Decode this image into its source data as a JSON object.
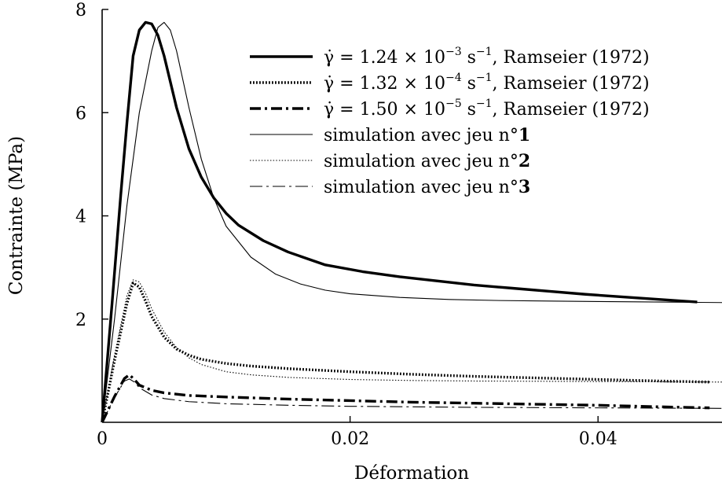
{
  "chart_data": {
    "type": "line",
    "title": "",
    "xlabel": "Déformation",
    "ylabel": "Contrainte (MPa)",
    "xlim": [
      0,
      0.05
    ],
    "ylim": [
      0,
      8
    ],
    "x_ticks": [
      {
        "value": 0,
        "label": "0"
      },
      {
        "value": 0.02,
        "label": "0.02"
      },
      {
        "value": 0.04,
        "label": "0.04"
      }
    ],
    "y_ticks": [
      {
        "value": 2,
        "label": "2"
      },
      {
        "value": 4,
        "label": "4"
      },
      {
        "value": 6,
        "label": "6"
      },
      {
        "value": 8,
        "label": "8"
      }
    ],
    "grid": false,
    "legend_position": "top-right",
    "series": [
      {
        "name": "γ̇ = 1.24 × 10⁻³ s⁻¹, Ramseier (1972)",
        "legend": {
          "lead": "γ̇ = 1.24 × 10",
          "sup1": "−3",
          "mid": " s",
          "sup2": "−1",
          "tail": ", Ramseier (1972)"
        },
        "style": "thick-solid",
        "x": [
          0,
          0.0008,
          0.0015,
          0.002,
          0.0025,
          0.003,
          0.0035,
          0.004,
          0.0045,
          0.005,
          0.006,
          0.007,
          0.008,
          0.009,
          0.01,
          0.011,
          0.013,
          0.015,
          0.018,
          0.021,
          0.024,
          0.027,
          0.03,
          0.033,
          0.036,
          0.039,
          0.042,
          0.045,
          0.048
        ],
        "y": [
          0,
          2.3,
          4.4,
          5.8,
          7.1,
          7.6,
          7.75,
          7.72,
          7.5,
          7.1,
          6.1,
          5.3,
          4.75,
          4.35,
          4.05,
          3.82,
          3.52,
          3.3,
          3.05,
          2.92,
          2.82,
          2.74,
          2.66,
          2.6,
          2.54,
          2.48,
          2.43,
          2.38,
          2.33
        ]
      },
      {
        "name": "γ̇ = 1.32 × 10⁻⁴ s⁻¹, Ramseier (1972)",
        "legend": {
          "lead": "γ̇ = 1.32 × 10",
          "sup1": "−4",
          "mid": " s",
          "sup2": "−1",
          "tail": ", Ramseier (1972)"
        },
        "style": "thick-dotted",
        "x": [
          0,
          0.001,
          0.002,
          0.0025,
          0.003,
          0.0035,
          0.004,
          0.005,
          0.006,
          0.007,
          0.008,
          0.01,
          0.012,
          0.015,
          0.02,
          0.025,
          0.03,
          0.035,
          0.04,
          0.045,
          0.049
        ],
        "y": [
          0,
          1.2,
          2.3,
          2.7,
          2.62,
          2.35,
          2.05,
          1.65,
          1.42,
          1.3,
          1.22,
          1.14,
          1.09,
          1.04,
          0.98,
          0.93,
          0.89,
          0.86,
          0.83,
          0.8,
          0.78
        ]
      },
      {
        "name": "γ̇ = 1.50 × 10⁻⁵ s⁻¹, Ramseier (1972)",
        "legend": {
          "lead": "γ̇ = 1.50 × 10",
          "sup1": "−5",
          "mid": " s",
          "sup2": "−1",
          "tail": ", Ramseier (1972)"
        },
        "style": "thick-dashdot",
        "x": [
          0,
          0.001,
          0.0018,
          0.0022,
          0.0026,
          0.003,
          0.004,
          0.005,
          0.007,
          0.01,
          0.015,
          0.02,
          0.025,
          0.03,
          0.035,
          0.04,
          0.045,
          0.049
        ],
        "y": [
          0,
          0.5,
          0.85,
          0.92,
          0.83,
          0.72,
          0.62,
          0.57,
          0.52,
          0.49,
          0.45,
          0.42,
          0.39,
          0.37,
          0.35,
          0.33,
          0.3,
          0.28
        ]
      },
      {
        "name": "simulation avec jeu n°1",
        "legend": {
          "lead": "simulation avec jeu n°",
          "bold": "1"
        },
        "style": "thin-solid",
        "x": [
          0,
          0.001,
          0.002,
          0.003,
          0.004,
          0.0045,
          0.005,
          0.0055,
          0.006,
          0.007,
          0.008,
          0.009,
          0.01,
          0.012,
          0.014,
          0.016,
          0.018,
          0.02,
          0.024,
          0.028,
          0.032,
          0.036,
          0.04,
          0.045,
          0.05
        ],
        "y": [
          0,
          2.0,
          4.2,
          6.0,
          7.2,
          7.65,
          7.75,
          7.6,
          7.2,
          6.1,
          5.1,
          4.35,
          3.8,
          3.2,
          2.87,
          2.68,
          2.56,
          2.49,
          2.42,
          2.38,
          2.36,
          2.35,
          2.34,
          2.33,
          2.32
        ]
      },
      {
        "name": "simulation avec jeu n°2",
        "legend": {
          "lead": "simulation avec jeu n°",
          "bold": "2"
        },
        "style": "thin-dotted",
        "x": [
          0,
          0.001,
          0.002,
          0.0025,
          0.003,
          0.0035,
          0.004,
          0.005,
          0.006,
          0.007,
          0.008,
          0.01,
          0.012,
          0.015,
          0.02,
          0.025,
          0.03,
          0.04,
          0.05
        ],
        "y": [
          0,
          1.3,
          2.45,
          2.76,
          2.72,
          2.5,
          2.2,
          1.75,
          1.45,
          1.25,
          1.12,
          0.98,
          0.92,
          0.87,
          0.83,
          0.81,
          0.8,
          0.79,
          0.78
        ]
      },
      {
        "name": "simulation avec jeu n°3",
        "legend": {
          "lead": "simulation avec jeu n°",
          "bold": "3"
        },
        "style": "thin-dashdot",
        "x": [
          0,
          0.001,
          0.0018,
          0.0022,
          0.0026,
          0.003,
          0.004,
          0.005,
          0.007,
          0.01,
          0.015,
          0.02,
          0.03,
          0.04,
          0.05
        ],
        "y": [
          0,
          0.48,
          0.8,
          0.84,
          0.78,
          0.67,
          0.53,
          0.46,
          0.4,
          0.36,
          0.33,
          0.31,
          0.29,
          0.28,
          0.27
        ]
      }
    ]
  }
}
